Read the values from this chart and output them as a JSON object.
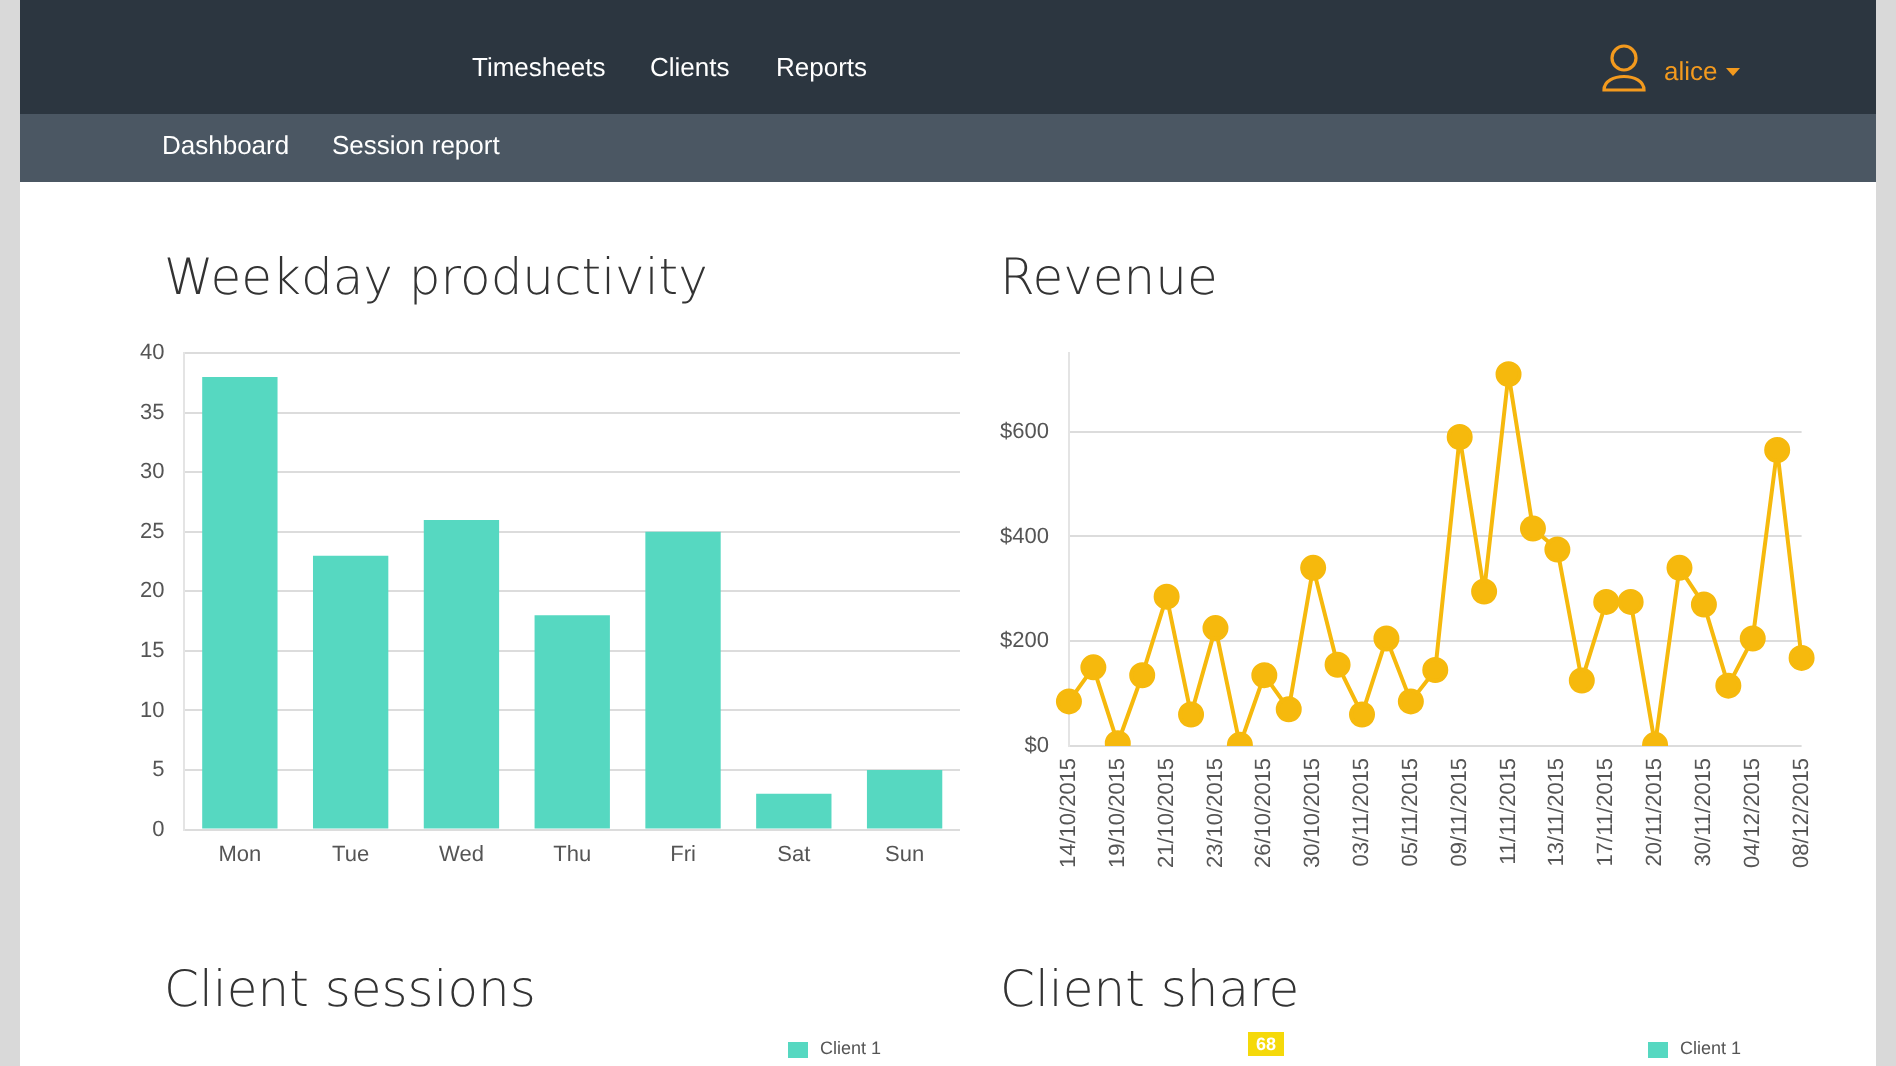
{
  "chart_data": [
    {
      "type": "other",
      "annotations": [
        "Timesheets",
        "Clients",
        "Reports",
        "alice",
        "Dashboard",
        "Session report"
      ]
    },
    {
      "type": "bar",
      "title": "Weekday productivity",
      "categories": [
        "Mon",
        "Tue",
        "Wed",
        "Thu",
        "Fri",
        "Sat",
        "Sun"
      ],
      "values": [
        38,
        23,
        26,
        18,
        25,
        3,
        5
      ],
      "color": "#56d8c1",
      "ylim": [
        0,
        40
      ],
      "yticks": [
        0,
        5,
        10,
        15,
        20,
        25,
        30,
        35,
        40
      ],
      "grid": "y",
      "legend": false
    },
    {
      "type": "line",
      "title": "Revenue",
      "categories": [
        "14/10/2015",
        null,
        "19/10/2015",
        null,
        "21/10/2015",
        null,
        "23/10/2015",
        null,
        "26/10/2015",
        null,
        "30/10/2015",
        null,
        "03/11/2015",
        null,
        "05/11/2015",
        null,
        "09/11/2015",
        null,
        "11/11/2015",
        null,
        "13/11/2015",
        null,
        "17/11/2015",
        null,
        "20/11/2015",
        null,
        "30/11/2015",
        null,
        "04/12/2015",
        null,
        "08/12/2015"
      ],
      "values": [
        85,
        150,
        5,
        135,
        285,
        60,
        225,
        2,
        135,
        70,
        340,
        155,
        60,
        205,
        85,
        145,
        590,
        295,
        710,
        415,
        375,
        125,
        275,
        275,
        2,
        340,
        270,
        115,
        205,
        565,
        168
      ],
      "color": "#f6b90d",
      "ylim": [
        0,
        750
      ],
      "yticks": [
        {
          "value": 0,
          "label": "$0"
        },
        {
          "value": 200,
          "label": "$200"
        },
        {
          "value": 400,
          "label": "$400"
        },
        {
          "value": 600,
          "label": "$600"
        }
      ],
      "grid": "y",
      "legend": false,
      "marker": "circle",
      "line_style": "solid"
    },
    {
      "type": "other",
      "title": "Client sessions",
      "annotations": [
        "Client 1"
      ]
    },
    {
      "type": "other",
      "title": "Client share",
      "annotations": [
        "68",
        "Client 1"
      ]
    }
  ]
}
